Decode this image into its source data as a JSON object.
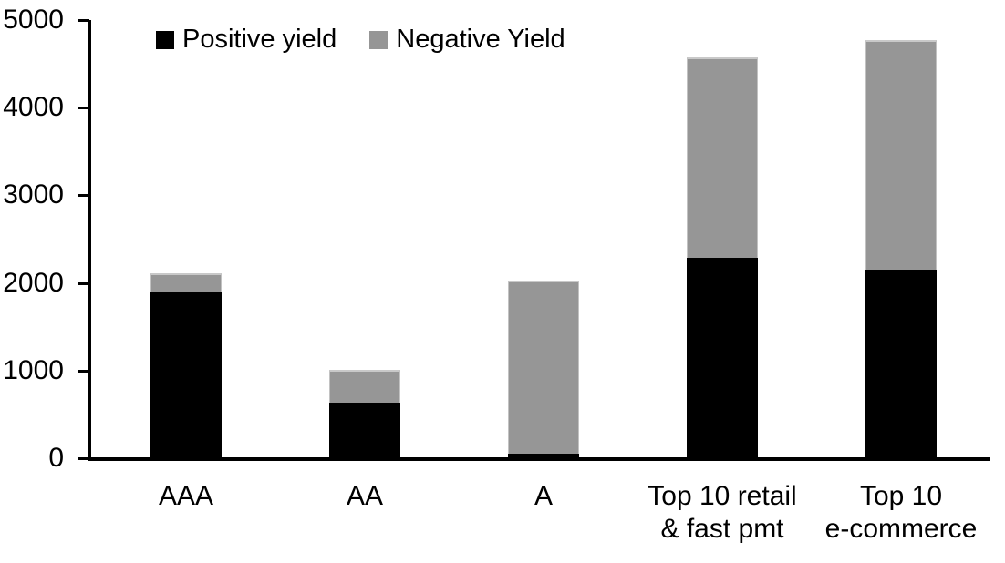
{
  "chart_data": {
    "type": "bar",
    "stacked": true,
    "title": "",
    "xlabel": "",
    "ylabel": "",
    "categories": [
      "AAA",
      "AA",
      "A",
      "Top 10 retail\n& fast pmt",
      "Top 10\ne-commerce"
    ],
    "series": [
      {
        "name": "Positive yield",
        "color": "#000000",
        "values": [
          1900,
          630,
          50,
          2290,
          2150
        ]
      },
      {
        "name": "Negative Yield",
        "color": "#969696",
        "values": [
          210,
          380,
          1980,
          2280,
          2620
        ]
      }
    ],
    "totals": [
      2110,
      1010,
      2030,
      4570,
      4770
    ],
    "ylim": [
      0,
      5000
    ],
    "yticks": [
      0,
      1000,
      2000,
      3000,
      4000,
      5000
    ],
    "grid": false,
    "legend_position": "top",
    "plot_background": "#ffffff",
    "axis_color": "#000000"
  }
}
